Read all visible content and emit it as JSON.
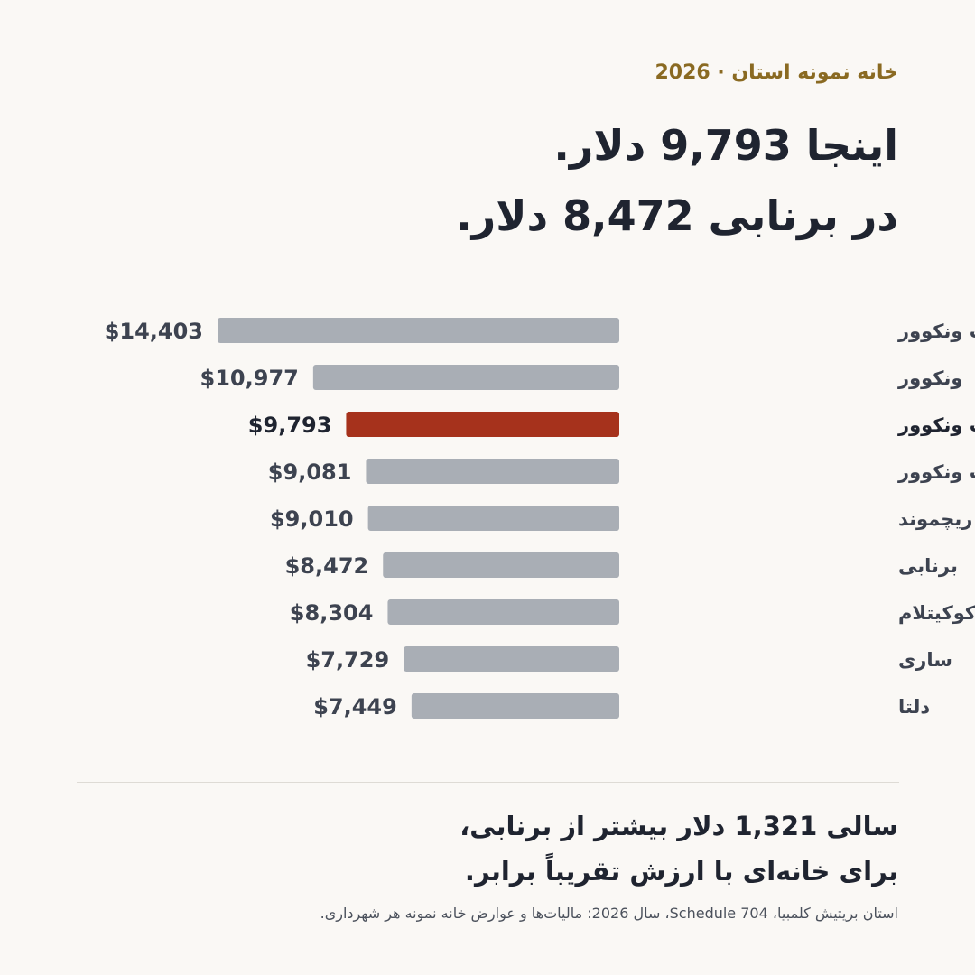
{
  "eyebrow": "خانه نمونه استان · 2026",
  "headline": {
    "line1": "اینجا 9,793 دلار.",
    "line2": "در برنابی 8,472 دلار."
  },
  "summary": {
    "line1": "سالی 1,321 دلار بیشتر از برنابی،",
    "line2": "برای خانه‌ای با ارزش تقریباً برابر."
  },
  "source": "استان بریتیش کلمبیا، Schedule 704، سال 2026: مالیات‌ها و عوارض خانه نمونه هر شهرداری.",
  "colors": {
    "bar_default": "#a9aeb5",
    "bar_highlight": "#a6321c",
    "text_default": "#3d4350",
    "text_highlight": "#1f2430",
    "accent": "#8a6a22"
  },
  "chart_data": {
    "type": "bar",
    "orientation": "horizontal",
    "categories": [
      "وست ونکوور",
      "ونکوور",
      "دیستریکت نورث ونکوور",
      "شهر نورث ونکوور",
      "ریچموند",
      "برنابی",
      "کوکیتلام",
      "ساری",
      "دلتا"
    ],
    "values": [
      14403,
      10977,
      9793,
      9081,
      9010,
      8472,
      8304,
      7729,
      7449
    ],
    "value_labels": [
      "$14,403",
      "$10,977",
      "$9,793",
      "$9,081",
      "$9,010",
      "$8,472",
      "$8,304",
      "$7,729",
      "$7,449"
    ],
    "highlight": "دیستریکت نورث ونکوور",
    "xlim": [
      0,
      14403
    ],
    "title": "",
    "xlabel": "",
    "ylabel": "",
    "grid": false,
    "legend": "none"
  }
}
